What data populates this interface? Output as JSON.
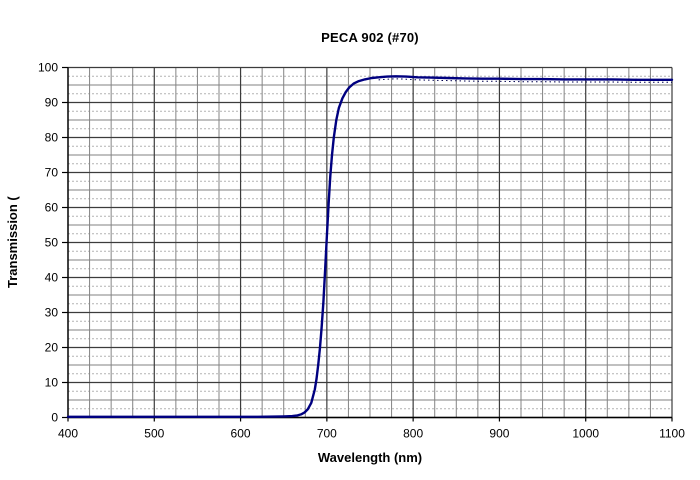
{
  "chart_data": {
    "type": "line",
    "title": "PECA 902 (#70)",
    "xlabel": "Wavelength (nm)",
    "ylabel": "Transmission (",
    "xlim": [
      400,
      1100
    ],
    "ylim": [
      0,
      100
    ],
    "x_ticks": [
      400,
      500,
      600,
      700,
      800,
      900,
      1000,
      1100
    ],
    "y_ticks": [
      0,
      10,
      20,
      30,
      40,
      50,
      60,
      70,
      80,
      90,
      100
    ],
    "x_minor_step": 25,
    "y_minor_step": 2.5,
    "grid": "major-and-minor",
    "legend_position": "none",
    "series": [
      {
        "name": "transmission-curve",
        "color": "#000080",
        "points": [
          [
            400,
            0.2
          ],
          [
            425,
            0.2
          ],
          [
            450,
            0.2
          ],
          [
            475,
            0.2
          ],
          [
            500,
            0.2
          ],
          [
            525,
            0.2
          ],
          [
            550,
            0.2
          ],
          [
            575,
            0.2
          ],
          [
            600,
            0.2
          ],
          [
            620,
            0.2
          ],
          [
            640,
            0.25
          ],
          [
            650,
            0.3
          ],
          [
            660,
            0.4
          ],
          [
            666,
            0.6
          ],
          [
            670,
            0.9
          ],
          [
            674,
            1.4
          ],
          [
            678,
            2.4
          ],
          [
            682,
            4.2
          ],
          [
            686,
            8
          ],
          [
            688,
            11
          ],
          [
            690,
            15
          ],
          [
            692,
            20
          ],
          [
            694,
            26
          ],
          [
            696,
            33
          ],
          [
            698,
            42
          ],
          [
            700,
            52
          ],
          [
            702,
            61
          ],
          [
            704,
            69
          ],
          [
            706,
            75
          ],
          [
            708,
            80
          ],
          [
            711,
            85
          ],
          [
            714,
            88.5
          ],
          [
            718,
            91.2
          ],
          [
            722,
            93
          ],
          [
            726,
            94.3
          ],
          [
            731,
            95.4
          ],
          [
            737,
            96.1
          ],
          [
            744,
            96.6
          ],
          [
            752,
            97
          ],
          [
            760,
            97.2
          ],
          [
            770,
            97.4
          ],
          [
            780,
            97.5
          ],
          [
            792,
            97.4
          ],
          [
            805,
            97.2
          ],
          [
            820,
            97.1
          ],
          [
            840,
            97
          ],
          [
            860,
            96.9
          ],
          [
            880,
            96.8
          ],
          [
            900,
            96.8
          ],
          [
            925,
            96.7
          ],
          [
            950,
            96.7
          ],
          [
            975,
            96.6
          ],
          [
            1000,
            96.6
          ],
          [
            1030,
            96.6
          ],
          [
            1060,
            96.5
          ],
          [
            1100,
            96.5
          ]
        ]
      }
    ],
    "marker_texture": {
      "description": "dotted data-point trail just below the flat top of the curve",
      "from_nm": 758,
      "color": "#00004f"
    }
  },
  "colors": {
    "background": "#ffffff",
    "curve": "#000080",
    "grid_major": "#3c3c3c",
    "grid_minor_mid": "#808080",
    "grid_minor_light": "#b4b4b4",
    "axis": "#000000",
    "text": "#000000"
  }
}
